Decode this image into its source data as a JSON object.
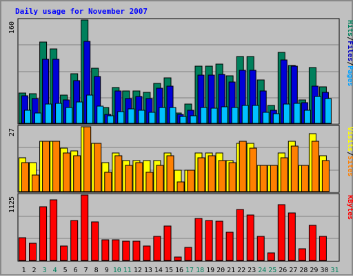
{
  "chart_data": {
    "type": "bar",
    "title": "Daily usage for November 2007",
    "categories": [
      "1",
      "2",
      "3",
      "4",
      "5",
      "6",
      "7",
      "8",
      "9",
      "10",
      "11",
      "12",
      "13",
      "14",
      "15",
      "16",
      "17",
      "18",
      "19",
      "20",
      "21",
      "22",
      "23",
      "24",
      "25",
      "26",
      "27",
      "28",
      "29",
      "30",
      "31"
    ],
    "weekend_days": [
      "3",
      "4",
      "10",
      "11",
      "17",
      "18",
      "24",
      "25",
      "31"
    ],
    "background_color": "#c0c0c0",
    "label_colors": {
      "title": "#0000ff",
      "weekday": "#000000",
      "weekend": "#00805c"
    },
    "panels": [
      {
        "name": "traffic",
        "ytick": "160",
        "ylim": [
          0,
          160
        ],
        "grid": true,
        "legend": [
          {
            "label": "Pages",
            "color": "#00a0ff"
          },
          {
            "label": "Files",
            "color": "#0000c0"
          },
          {
            "label": "Hits",
            "color": "#00805c"
          }
        ],
        "legend_separator": "/",
        "series": [
          {
            "name": "Hits",
            "color": "#00805c",
            "values": [
              47,
              46,
              126,
              115,
              44,
              77,
              164,
              85,
              24,
              55,
              50,
              50,
              48,
              62,
              70,
              16,
              30,
              89,
              89,
              92,
              74,
              103,
              103,
              67,
              28,
              110,
              90,
              36,
              86,
              56,
              0
            ]
          },
          {
            "name": "Files",
            "color": "#0000d8",
            "values": [
              43,
              38,
              99,
              99,
              36,
              66,
              127,
              73,
              14,
              50,
              38,
              42,
              38,
              54,
              58,
              14,
              20,
              75,
              75,
              76,
              64,
              82,
              82,
              50,
              20,
              98,
              88,
              32,
              58,
              48,
              0
            ]
          },
          {
            "name": "Pages",
            "color": "#00c0ff",
            "values": [
              20,
              16,
              30,
              31,
              25,
              33,
              44,
              27,
              12,
              18,
              22,
              20,
              17,
              24,
              24,
              11,
              12,
              25,
              23,
              26,
              24,
              28,
              28,
              17,
              15,
              30,
              31,
              20,
              42,
              38,
              0
            ]
          }
        ]
      },
      {
        "name": "visitors",
        "ytick": "27",
        "ylim": [
          0,
          27
        ],
        "grid": true,
        "legend": [
          {
            "label": "Sites",
            "color": "#ff8000"
          },
          {
            "label": "Visits",
            "color": "#ffff00"
          }
        ],
        "legend_separator": "/",
        "series": [
          {
            "name": "Visits",
            "color": "#ffff00",
            "values": [
              14,
              12,
              21,
              21,
              18,
              17,
              28,
              20,
              12,
              16,
              13,
              13,
              13,
              13,
              16,
              9,
              9,
              16,
              16,
              16,
              13,
              20,
              20,
              11,
              11,
              16,
              21,
              11,
              24,
              15,
              0
            ]
          },
          {
            "name": "Sites",
            "color": "#ff8000",
            "values": [
              12,
              7,
              21,
              21,
              16,
              15,
              27,
              20,
              8,
              15,
              11,
              12,
              8,
              11,
              15,
              4,
              9,
              14,
              15,
              13,
              12,
              21,
              18,
              11,
              11,
              14,
              19,
              11,
              21,
              13,
              0
            ]
          }
        ]
      },
      {
        "name": "volume",
        "ytick": "1125",
        "ylim": [
          0,
          1125
        ],
        "grid": true,
        "legend": [
          {
            "label": "KBytes",
            "color": "#ff0000"
          }
        ],
        "legend_separator": "/",
        "series": [
          {
            "name": "KBytes",
            "color": "#ff0000",
            "values": [
              385,
              295,
              922,
              1047,
              244,
              685,
              1140,
              662,
              357,
              355,
              327,
              332,
              244,
              417,
              595,
              63,
              225,
              721,
              690,
              678,
              487,
              871,
              784,
              409,
              131,
              955,
              814,
              207,
              608,
              418,
              0
            ]
          }
        ]
      }
    ]
  }
}
